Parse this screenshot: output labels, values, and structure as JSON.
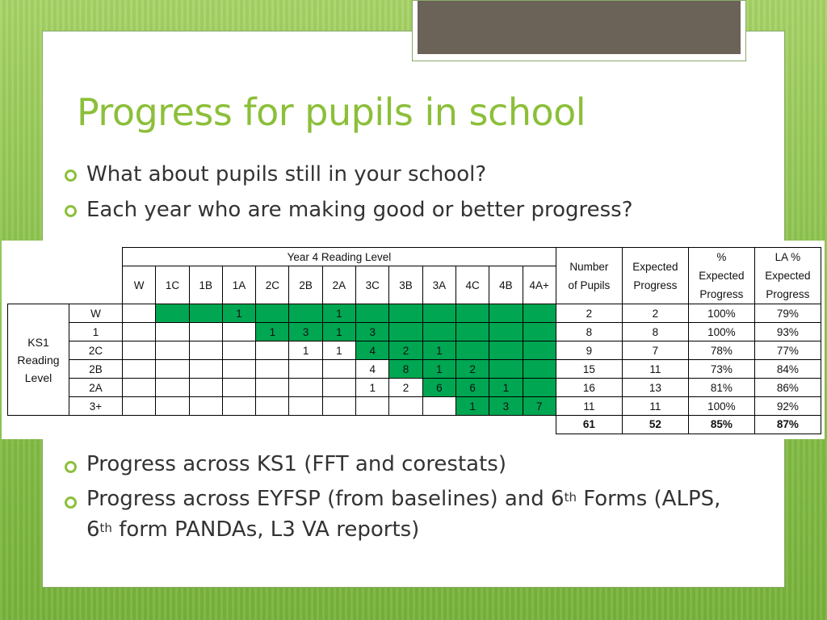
{
  "slide": {
    "title": "Progress for pupils in school",
    "bullets_top": [
      "What about pupils still in your school?",
      "Each year who are making good or better progress?"
    ],
    "bullets_bottom": {
      "item1": "Progress across KS1 (FFT and corestats)",
      "item2_a": "Progress across EYFSP (from baselines) and 6",
      "item2_sup1": "th",
      "item2_b": " Forms (ALPS, 6",
      "item2_sup2": "th",
      "item2_c": " form PANDAs, L3 VA reports)"
    }
  },
  "table": {
    "header": "Year 4 Reading Level",
    "columns": [
      "W",
      "1C",
      "1B",
      "1A",
      "2C",
      "2B",
      "2A",
      "3C",
      "3B",
      "3A",
      "4C",
      "4B",
      "4A+"
    ],
    "ks1_label_lines": [
      "KS1",
      "Reading",
      "Level"
    ],
    "stat_headers": [
      [
        "Number",
        "of Pupils"
      ],
      [
        "Expected",
        "Progress"
      ],
      [
        "%",
        "Expected",
        "Progress"
      ],
      [
        "LA %",
        "Expected",
        "Progress"
      ]
    ],
    "rows": [
      {
        "label": "W",
        "green_from": 1,
        "cells": [
          "",
          "",
          "",
          "1",
          "",
          "",
          "1",
          "",
          "",
          "",
          "",
          "",
          ""
        ],
        "stats": [
          "2",
          "2",
          "100%",
          "79%"
        ]
      },
      {
        "label": "1",
        "green_from": 4,
        "cells": [
          "",
          "",
          "",
          "",
          "1",
          "3",
          "1",
          "3",
          "",
          "",
          "",
          "",
          ""
        ],
        "stats": [
          "8",
          "8",
          "100%",
          "93%"
        ]
      },
      {
        "label": "2C",
        "green_from": 7,
        "cells": [
          "",
          "",
          "",
          "",
          "",
          "1",
          "1",
          "4",
          "2",
          "1",
          "",
          "",
          ""
        ],
        "stats": [
          "9",
          "7",
          "78%",
          "77%"
        ]
      },
      {
        "label": "2B",
        "green_from": 8,
        "cells": [
          "",
          "",
          "",
          "",
          "",
          "",
          "",
          "4",
          "8",
          "1",
          "2",
          "",
          ""
        ],
        "stats": [
          "15",
          "11",
          "73%",
          "84%"
        ]
      },
      {
        "label": "2A",
        "green_from": 9,
        "cells": [
          "",
          "",
          "",
          "",
          "",
          "",
          "",
          "1",
          "2",
          "6",
          "6",
          "1",
          ""
        ],
        "stats": [
          "16",
          "13",
          "81%",
          "86%"
        ]
      },
      {
        "label": "3+",
        "green_from": 10,
        "cells": [
          "",
          "",
          "",
          "",
          "",
          "",
          "",
          "",
          "",
          "",
          "1",
          "3",
          "7"
        ],
        "stats": [
          "11",
          "11",
          "100%",
          "92%"
        ]
      }
    ],
    "totals": [
      "61",
      "52",
      "85%",
      "87%"
    ]
  }
}
